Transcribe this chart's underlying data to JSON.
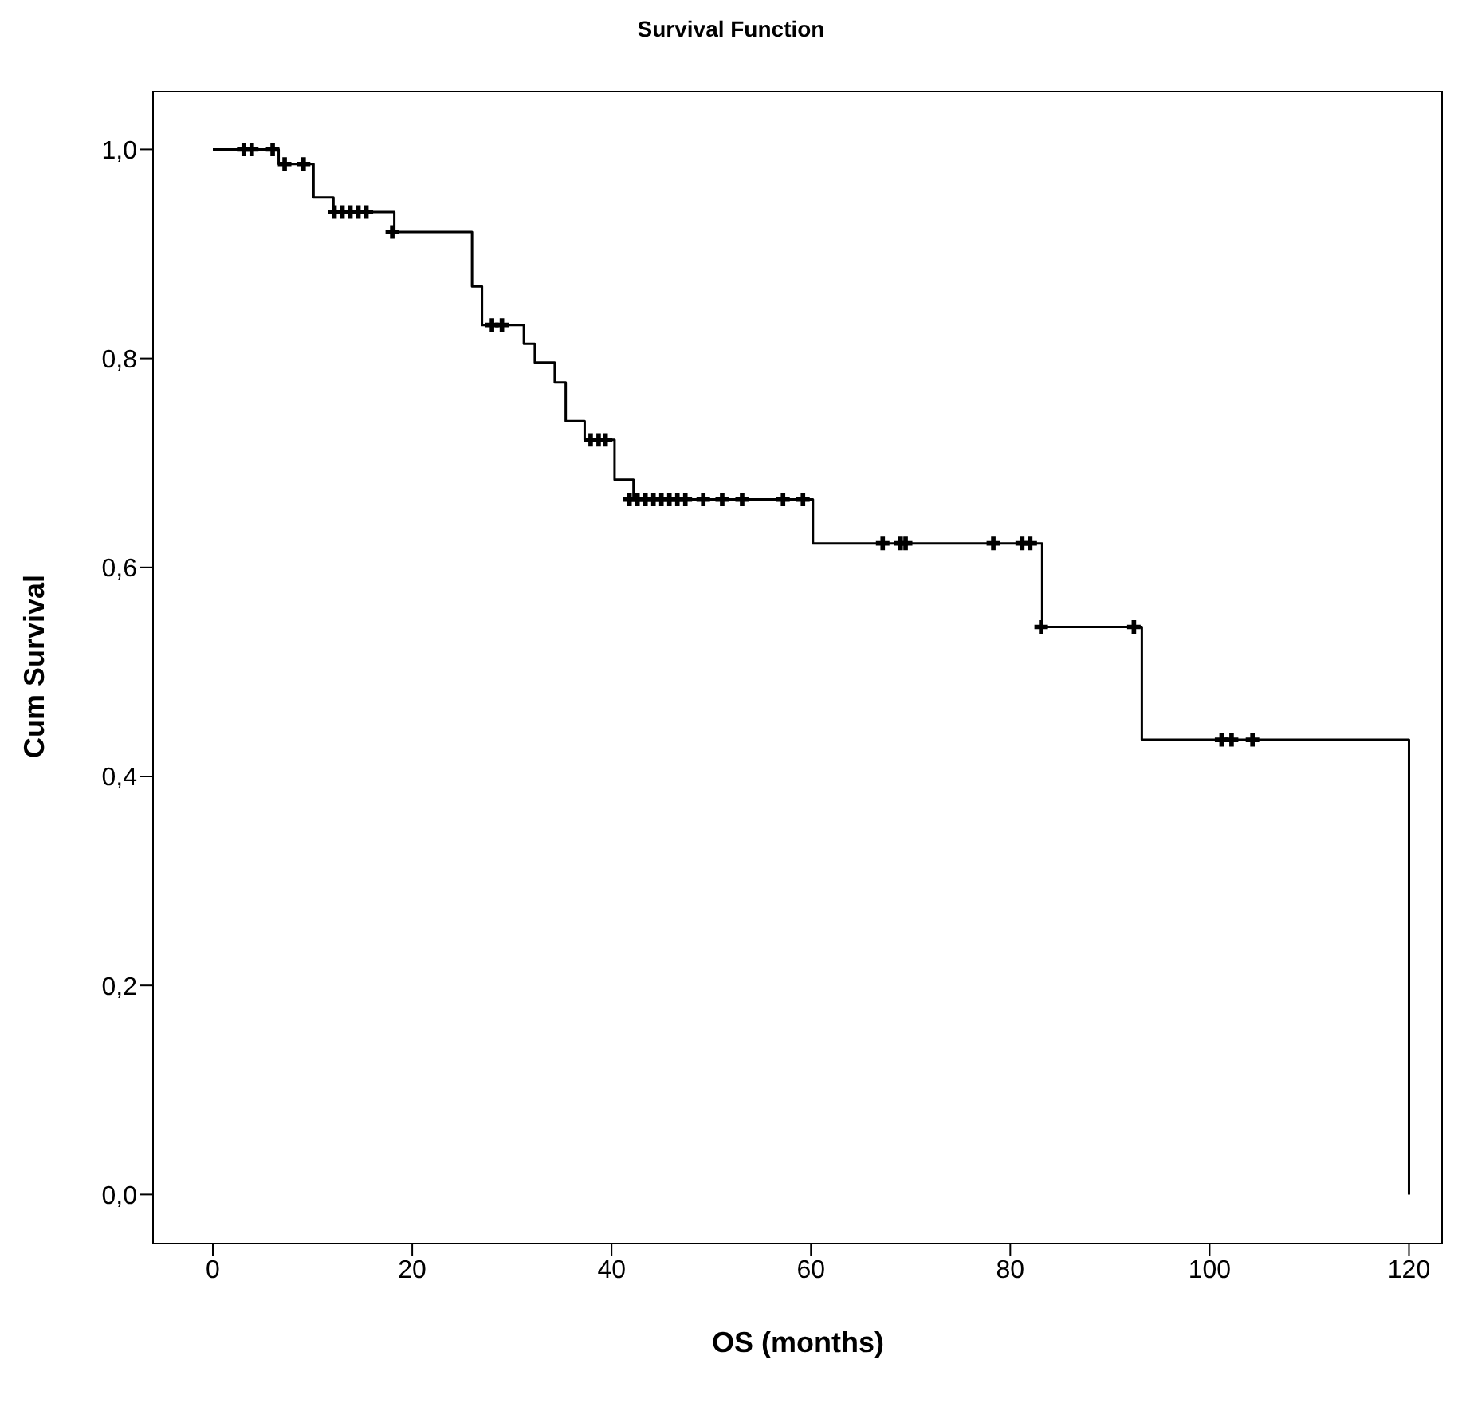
{
  "chart_data": {
    "type": "step",
    "title": "Survival Function",
    "xlabel": "OS (months)",
    "ylabel": "Cum Survival",
    "xlim": [
      -6,
      123.4
    ],
    "ylim": [
      -0.047,
      1.056
    ],
    "xticks": [
      0,
      20,
      40,
      60,
      80,
      100,
      120
    ],
    "yticks": [
      {
        "value": 0,
        "label": "0,0"
      },
      {
        "value": 0.2,
        "label": "0,2"
      },
      {
        "value": 0.4,
        "label": "0,4"
      },
      {
        "value": 0.6,
        "label": "0,6"
      },
      {
        "value": 0.8,
        "label": "0,8"
      },
      {
        "value": 1,
        "label": "1,0"
      }
    ],
    "grid": false,
    "series": [
      {
        "type": "step",
        "color": "#000000",
        "marker": "none",
        "x": [
          0,
          6.6,
          10.1,
          12.1,
          18.2,
          26,
          27,
          31.2,
          32.3,
          34.3,
          35.4,
          37.3,
          40.3,
          42.2,
          60.2,
          83.2,
          93.2,
          120
        ],
        "values": [
          1,
          0.986,
          0.954,
          0.94,
          0.921,
          0.869,
          0.832,
          0.814,
          0.796,
          0.777,
          0.74,
          0.722,
          0.684,
          0.665,
          0.623,
          0.543,
          0.435,
          0
        ]
      },
      {
        "type": "scatter",
        "color": "#000000",
        "marker": "cross",
        "x": [
          3.1,
          3.9,
          6,
          7.2,
          9.1,
          12.2,
          13,
          13.8,
          14.6,
          15.4,
          18,
          28,
          29,
          37.9,
          38.7,
          39.4,
          41.8,
          42.6,
          43.4,
          44.2,
          45,
          45.8,
          46.6,
          47.4,
          49.2,
          51.1,
          53.1,
          57.2,
          59.2,
          67.2,
          69,
          69.5,
          78.3,
          81.2,
          82,
          83.1,
          92.4,
          101.2,
          102.2,
          104.3
        ],
        "values": [
          1,
          1,
          1,
          0.986,
          0.986,
          0.94,
          0.94,
          0.94,
          0.94,
          0.94,
          0.921,
          0.832,
          0.832,
          0.722,
          0.722,
          0.722,
          0.665,
          0.665,
          0.665,
          0.665,
          0.665,
          0.665,
          0.665,
          0.665,
          0.665,
          0.665,
          0.665,
          0.665,
          0.665,
          0.623,
          0.623,
          0.623,
          0.623,
          0.623,
          0.623,
          0.543,
          0.543,
          0.435,
          0.435,
          0.435
        ]
      }
    ]
  }
}
